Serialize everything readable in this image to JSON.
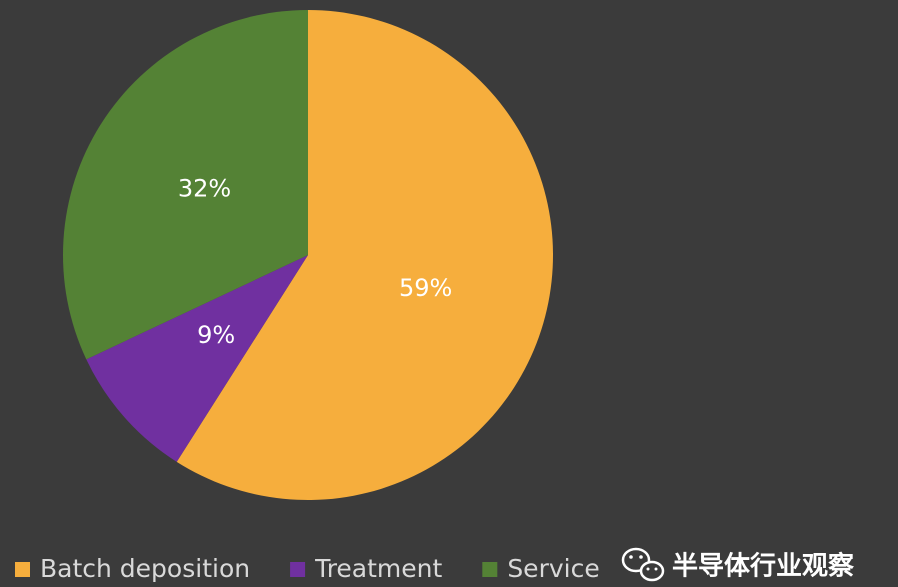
{
  "chart_data": {
    "type": "pie",
    "categories": [
      "Batch deposition",
      "Treatment",
      "Service"
    ],
    "values": [
      59,
      9,
      32
    ],
    "value_labels": [
      "59%",
      "9%",
      "32%"
    ],
    "colors": [
      "#f6ae3d",
      "#7030a0",
      "#548235"
    ],
    "legend": "bottom",
    "watermark": "半导体行业观察"
  }
}
